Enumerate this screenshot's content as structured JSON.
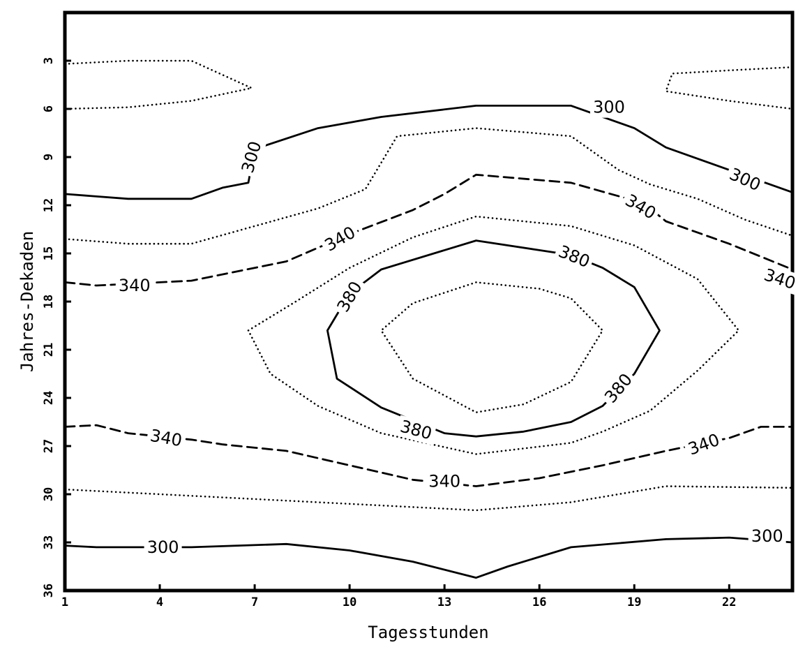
{
  "chart_data": {
    "type": "contour",
    "xlabel": "Tagesstunden",
    "ylabel": "Jahres-Dekaden",
    "xlim": [
      1,
      24
    ],
    "ylim": [
      36,
      0
    ],
    "x_ticks": [
      "1",
      "4",
      "7",
      "10",
      "13",
      "16",
      "19",
      "22"
    ],
    "y_ticks": [
      "3",
      "6",
      "9",
      "12",
      "15",
      "18",
      "21",
      "24",
      "27",
      "30",
      "33",
      "36"
    ],
    "contours": [
      {
        "level": 300,
        "style": "solid",
        "points": [
          [
            1,
            11.3
          ],
          [
            3,
            11.6
          ],
          [
            5,
            11.6
          ],
          [
            6,
            10.9
          ],
          [
            6.8,
            10.6
          ],
          [
            7,
            8.5
          ],
          [
            9,
            7.2
          ],
          [
            11,
            6.5
          ],
          [
            14,
            5.8
          ],
          [
            17,
            5.8
          ],
          [
            19,
            7.2
          ],
          [
            20,
            8.4
          ],
          [
            22,
            9.8
          ],
          [
            24,
            11.2
          ]
        ]
      },
      {
        "level": 320,
        "style": "dotted",
        "points": [
          [
            1,
            3.2
          ],
          [
            3,
            3.0
          ],
          [
            5,
            3.0
          ],
          [
            6.9,
            4.7
          ],
          [
            5,
            5.5
          ],
          [
            3,
            5.9
          ],
          [
            1,
            6.0
          ]
        ]
      },
      {
        "level": 320,
        "style": "dotted",
        "points": [
          [
            24,
            3.4
          ],
          [
            22,
            3.6
          ],
          [
            20.2,
            3.8
          ],
          [
            20,
            4.9
          ],
          [
            22,
            5.5
          ],
          [
            24,
            6.0
          ]
        ]
      },
      {
        "level": 320,
        "style": "dotted",
        "points": [
          [
            1,
            14.1
          ],
          [
            3,
            14.4
          ],
          [
            5,
            14.4
          ],
          [
            7,
            13.3
          ],
          [
            9,
            12.2
          ],
          [
            10.5,
            11.0
          ],
          [
            11.5,
            7.7
          ],
          [
            14,
            7.2
          ],
          [
            17,
            7.7
          ],
          [
            18.5,
            9.8
          ],
          [
            19.5,
            10.7
          ],
          [
            21,
            11.6
          ],
          [
            22.5,
            12.9
          ],
          [
            24,
            13.9
          ]
        ]
      },
      {
        "level": 340,
        "style": "dashed",
        "points": [
          [
            1,
            16.8
          ],
          [
            2,
            17.0
          ],
          [
            5,
            16.7
          ],
          [
            8,
            15.5
          ],
          [
            10,
            13.8
          ],
          [
            12,
            12.3
          ],
          [
            13,
            11.3
          ],
          [
            14,
            10.1
          ],
          [
            17,
            10.6
          ],
          [
            18.8,
            11.6
          ],
          [
            19.5,
            12.2
          ],
          [
            20,
            13.0
          ],
          [
            22,
            14.4
          ],
          [
            24,
            16.0
          ]
        ]
      },
      {
        "level": 360,
        "style": "dotted",
        "points": [
          [
            6.8,
            19.8
          ],
          [
            8.3,
            18.0
          ],
          [
            10,
            15.9
          ],
          [
            12,
            14.0
          ],
          [
            14,
            12.7
          ],
          [
            17,
            13.3
          ],
          [
            19,
            14.5
          ],
          [
            21,
            16.6
          ],
          [
            22.3,
            19.8
          ],
          [
            21,
            22.3
          ],
          [
            19.5,
            24.8
          ],
          [
            18,
            26.1
          ],
          [
            17,
            26.8
          ],
          [
            14,
            27.5
          ],
          [
            11,
            26.2
          ],
          [
            9,
            24.5
          ],
          [
            7.5,
            22.5
          ],
          [
            6.8,
            19.8
          ]
        ]
      },
      {
        "level": 380,
        "style": "solid",
        "points": [
          [
            14,
            14.2
          ],
          [
            11,
            16.0
          ],
          [
            10,
            17.5
          ],
          [
            9.3,
            19.8
          ],
          [
            9.6,
            22.8
          ],
          [
            11,
            24.6
          ],
          [
            13,
            26.2
          ],
          [
            14,
            26.4
          ],
          [
            15.5,
            26.1
          ],
          [
            17,
            25.5
          ],
          [
            18,
            24.5
          ],
          [
            19,
            22.5
          ],
          [
            19.8,
            19.8
          ],
          [
            19,
            17.1
          ],
          [
            18,
            15.9
          ],
          [
            17,
            15.1
          ],
          [
            16,
            14.8
          ],
          [
            14,
            14.2
          ]
        ]
      },
      {
        "level": 400,
        "style": "dotted",
        "points": [
          [
            14,
            16.8
          ],
          [
            12,
            18.1
          ],
          [
            11,
            19.8
          ],
          [
            12,
            22.8
          ],
          [
            14,
            24.9
          ],
          [
            15.5,
            24.4
          ],
          [
            17,
            23.0
          ],
          [
            18,
            19.8
          ],
          [
            17,
            17.8
          ],
          [
            16,
            17.2
          ],
          [
            14,
            16.8
          ]
        ]
      },
      {
        "level": 340,
        "style": "dashed",
        "points": [
          [
            1,
            25.8
          ],
          [
            2,
            25.7
          ],
          [
            3,
            26.2
          ],
          [
            5,
            26.6
          ],
          [
            6,
            26.9
          ],
          [
            8,
            27.3
          ],
          [
            10,
            28.2
          ],
          [
            12,
            29.1
          ],
          [
            14,
            29.5
          ],
          [
            16,
            29.0
          ],
          [
            18,
            28.2
          ],
          [
            20,
            27.3
          ],
          [
            22,
            26.5
          ],
          [
            23,
            25.8
          ],
          [
            24,
            25.8
          ]
        ]
      },
      {
        "level": 320,
        "style": "dotted",
        "points": [
          [
            1,
            29.7
          ],
          [
            5,
            30.1
          ],
          [
            10,
            30.6
          ],
          [
            14,
            31.0
          ],
          [
            17,
            30.5
          ],
          [
            20,
            29.5
          ],
          [
            24,
            29.6
          ]
        ]
      },
      {
        "level": 300,
        "style": "solid",
        "points": [
          [
            1,
            33.2
          ],
          [
            2,
            33.3
          ],
          [
            5,
            33.3
          ],
          [
            8,
            33.1
          ],
          [
            10,
            33.5
          ],
          [
            12,
            34.2
          ],
          [
            14,
            35.2
          ],
          [
            15,
            34.5
          ],
          [
            17,
            33.3
          ],
          [
            20,
            32.8
          ],
          [
            22,
            32.7
          ],
          [
            24,
            33.0
          ]
        ]
      }
    ],
    "labels": [
      {
        "text": "300",
        "x": 18.2,
        "y": 5.9,
        "rotate": 0
      },
      {
        "text": "300",
        "x": 6.9,
        "y": 9.0,
        "rotate": -74
      },
      {
        "text": "300",
        "x": 22.5,
        "y": 10.4,
        "rotate": 24
      },
      {
        "text": "340",
        "x": 19.2,
        "y": 12.1,
        "rotate": 30
      },
      {
        "text": "340",
        "x": 9.7,
        "y": 14.1,
        "rotate": -30
      },
      {
        "text": "340",
        "x": 3.2,
        "y": 17.0,
        "rotate": 0
      },
      {
        "text": "340",
        "x": 23.6,
        "y": 16.6,
        "rotate": 18
      },
      {
        "text": "380",
        "x": 17.1,
        "y": 15.2,
        "rotate": 22
      },
      {
        "text": "380",
        "x": 10.0,
        "y": 17.7,
        "rotate": -60
      },
      {
        "text": "380",
        "x": 18.5,
        "y": 23.4,
        "rotate": -50
      },
      {
        "text": "380",
        "x": 12.1,
        "y": 26.0,
        "rotate": 15
      },
      {
        "text": "340",
        "x": 4.2,
        "y": 26.5,
        "rotate": 10
      },
      {
        "text": "340",
        "x": 13.0,
        "y": 29.2,
        "rotate": 0
      },
      {
        "text": "340",
        "x": 21.2,
        "y": 26.9,
        "rotate": -20
      },
      {
        "text": "300",
        "x": 4.1,
        "y": 33.3,
        "rotate": 0
      },
      {
        "text": "300",
        "x": 23.2,
        "y": 32.6,
        "rotate": 0
      }
    ]
  }
}
